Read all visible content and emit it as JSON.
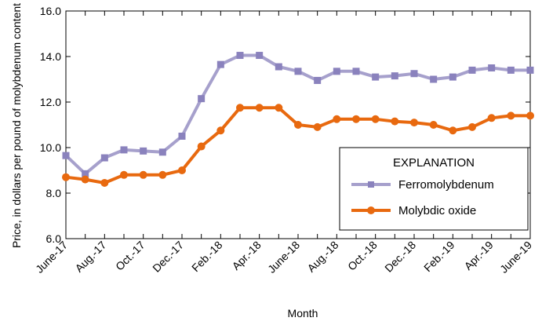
{
  "chart_data": {
    "type": "line",
    "title": "",
    "xlabel": "Month",
    "ylabel": "Price, in dollars per pound of molybdenum content",
    "ylim": [
      6.0,
      16.0
    ],
    "yticks": [
      "6.0",
      "8.0",
      "10.0",
      "12.0",
      "14.0",
      "16.0"
    ],
    "x": [
      "June-17",
      "July-17",
      "Aug.-17",
      "Sep.-17",
      "Oct.-17",
      "Nov.-17",
      "Dec.-17",
      "Jan.-18",
      "Feb.-18",
      "Mar.-18",
      "Apr.-18",
      "May-18",
      "June-18",
      "July-18",
      "Aug.-18",
      "Sep.-18",
      "Oct.-18",
      "Nov.-18",
      "Dec.-18",
      "Jan.-19",
      "Feb.-19",
      "Mar.-19",
      "Apr.-19",
      "May-19",
      "June-19"
    ],
    "xtick_labels": [
      "June-17",
      "Aug.-17",
      "Oct.-17",
      "Dec.-17",
      "Feb.-18",
      "Apr.-18",
      "June-18",
      "Aug.-18",
      "Oct.-18",
      "Dec.-18",
      "Feb.-19",
      "Apr.-19",
      "June-19"
    ],
    "grid": false,
    "legend": {
      "title": "EXPLANATION",
      "placement": "right"
    },
    "series": [
      {
        "name": "Ferromolybdenum",
        "color": "#a6a0cc",
        "marker": "square",
        "values": [
          9.65,
          8.85,
          9.55,
          9.9,
          9.85,
          9.8,
          10.5,
          12.15,
          13.65,
          14.05,
          14.05,
          13.55,
          13.35,
          12.95,
          13.35,
          13.35,
          13.1,
          13.15,
          13.25,
          13.0,
          13.1,
          13.4,
          13.5,
          13.4,
          13.4
        ]
      },
      {
        "name": "Molybdic oxide",
        "color": "#e8690f",
        "marker": "circle",
        "values": [
          8.7,
          8.6,
          8.45,
          8.8,
          8.8,
          8.8,
          9.0,
          10.05,
          10.75,
          11.75,
          11.75,
          11.75,
          11.0,
          10.9,
          11.25,
          11.25,
          11.25,
          11.15,
          11.1,
          11.0,
          10.75,
          10.9,
          11.3,
          11.4,
          11.4
        ]
      }
    ]
  }
}
